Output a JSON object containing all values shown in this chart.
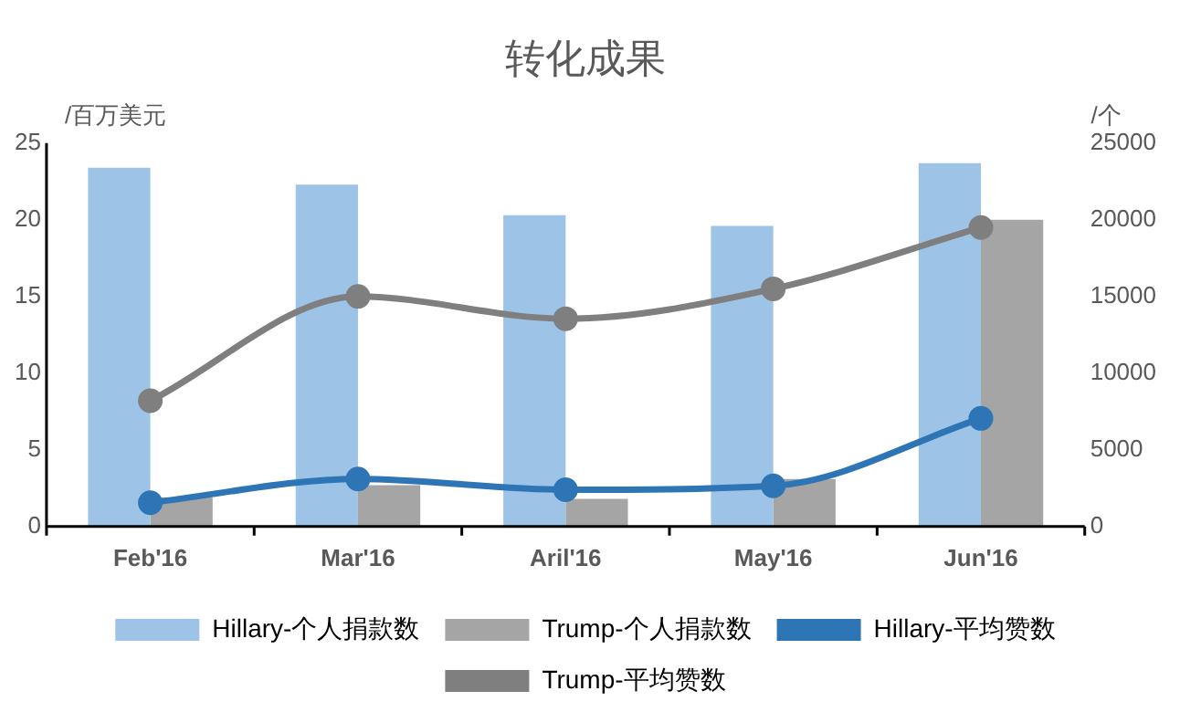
{
  "chart_data": {
    "type": "bar",
    "title": "转化成果",
    "ylabel": "/百万美元",
    "y2label": "/个",
    "categories": [
      "Feb'16",
      "Mar'16",
      "Aril'16",
      "May'16",
      "Jun'16"
    ],
    "series": [
      {
        "name": "Hillary-个人捐款数",
        "color": "#9dc3e6",
        "values": [
          23.4,
          22.3,
          20.3,
          19.6,
          23.7
        ]
      },
      {
        "name": "Trump-个人捐款数",
        "color": "#a5a5a5",
        "values": [
          1.9,
          2.7,
          1.8,
          3.1,
          20.0
        ]
      },
      {
        "name": "Hillary-平均赞数",
        "type": "line",
        "axis": "y2",
        "color": "#2e75b6",
        "values": [
          1550,
          3100,
          2400,
          2650,
          7050
        ]
      },
      {
        "name": "Trump-平均赞数",
        "type": "line",
        "axis": "y2",
        "color": "#7f7f7f",
        "values": [
          8200,
          15000,
          13550,
          15500,
          19500
        ]
      }
    ],
    "ylim": [
      0,
      25
    ],
    "yticks": [
      0,
      5,
      10,
      15,
      20,
      25
    ],
    "y2lim": [
      0,
      25000
    ],
    "y2ticks": [
      0,
      5000,
      10000,
      15000,
      20000,
      25000
    ],
    "grid": false,
    "legend": "bottom",
    "marker": "circle",
    "line_style": "solid"
  }
}
